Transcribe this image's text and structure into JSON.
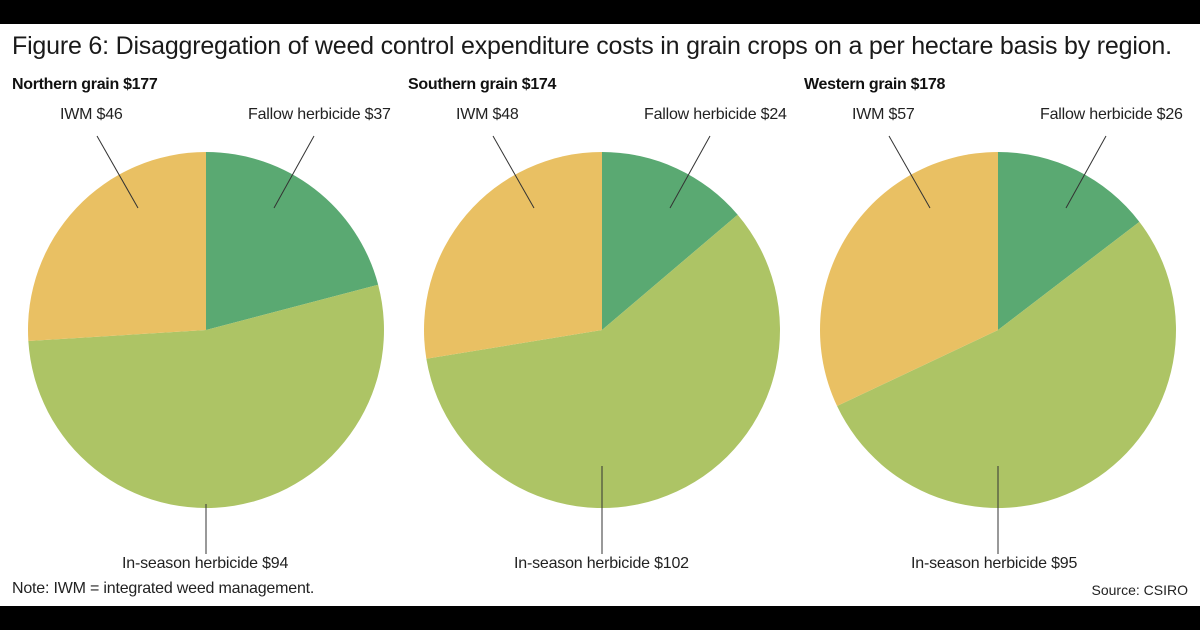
{
  "title": "Figure 6: Disaggregation of weed control expenditure costs in grain crops on a per hectare basis by region.",
  "note": "Note: IWM = integrated weed management.",
  "source": "Source: CSIRO",
  "colors": {
    "fallow": "#5aa972",
    "inseason": "#adc465",
    "iwm": "#e9c063",
    "leader": "#333333"
  },
  "chart_data": [
    {
      "type": "pie",
      "title": "Northern grain $177",
      "slices": [
        {
          "name": "Fallow herbicide",
          "value": 37,
          "label": "Fallow herbicide $37"
        },
        {
          "name": "In-season herbicide",
          "value": 94,
          "label": "In-season herbicide $94"
        },
        {
          "name": "IWM",
          "value": 46,
          "label": "IWM $46"
        }
      ]
    },
    {
      "type": "pie",
      "title": "Southern grain $174",
      "slices": [
        {
          "name": "Fallow herbicide",
          "value": 24,
          "label": "Fallow herbicide $24"
        },
        {
          "name": "In-season herbicide",
          "value": 102,
          "label": "In-season herbicide $102"
        },
        {
          "name": "IWM",
          "value": 48,
          "label": "IWM $48"
        }
      ]
    },
    {
      "type": "pie",
      "title": "Western grain $178",
      "slices": [
        {
          "name": "Fallow herbicide",
          "value": 26,
          "label": "Fallow herbicide $26"
        },
        {
          "name": "In-season herbicide",
          "value": 95,
          "label": "In-season herbicide $95"
        },
        {
          "name": "IWM",
          "value": 57,
          "label": "IWM $57"
        }
      ]
    }
  ]
}
